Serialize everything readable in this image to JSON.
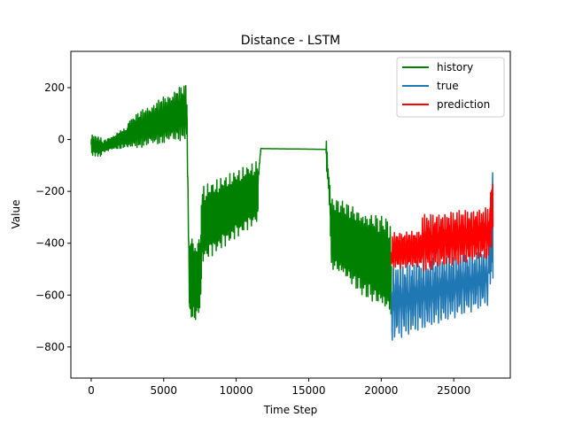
{
  "chart_data": {
    "type": "line",
    "title": "Distance - LSTM",
    "xlabel": "Time Step",
    "ylabel": "Value",
    "xlim": [
      -1400,
      28900
    ],
    "ylim": [
      -920,
      340
    ],
    "xticks": [
      0,
      5000,
      10000,
      15000,
      20000,
      25000
    ],
    "xtick_labels": [
      "0",
      "5000",
      "10000",
      "15000",
      "20000",
      "25000"
    ],
    "yticks": [
      -800,
      -600,
      -400,
      -200,
      0,
      200
    ],
    "ytick_labels": [
      "−800",
      "−600",
      "−400",
      "−200",
      "0",
      "200"
    ],
    "grid": false,
    "legend_position": "top-right",
    "series": [
      {
        "name": "history",
        "color": "#008000",
        "segments": [
          {
            "x_start": 0,
            "x_end": 700,
            "center": [
              -20,
              -30
            ],
            "amplitude": [
              40,
              40
            ],
            "period": 60
          },
          {
            "x_start": 700,
            "x_end": 2500,
            "center": [
              -30,
              10
            ],
            "amplitude": [
              20,
              40
            ],
            "period": 80
          },
          {
            "x_start": 2500,
            "x_end": 6600,
            "center": [
              20,
              110
            ],
            "amplitude": [
              60,
              110
            ],
            "period": 110
          },
          {
            "x_start": 6600,
            "x_end": 6800,
            "center": [
              80,
              -700
            ],
            "amplitude": [
              80,
              60
            ],
            "period": 60
          },
          {
            "x_start": 6800,
            "x_end": 7600,
            "center": [
              -550,
              -500
            ],
            "amplitude": [
              180,
              160
            ],
            "period": 70
          },
          {
            "x_start": 7600,
            "x_end": 11500,
            "center": [
              -330,
              -200
            ],
            "amplitude": [
              150,
              120
            ],
            "period": 90
          },
          {
            "x_start": 11500,
            "x_end": 11700,
            "center": [
              -160,
              -35
            ],
            "amplitude": [
              20,
              0
            ],
            "period": 60
          },
          {
            "x_start": 11700,
            "x_end": 16200,
            "center": [
              -35,
              -38
            ],
            "amplitude": [
              0,
              0
            ],
            "period": 500
          },
          {
            "x_start": 16200,
            "x_end": 16500,
            "center": [
              -40,
              -260
            ],
            "amplitude": [
              50,
              50
            ],
            "period": 60
          },
          {
            "x_start": 16500,
            "x_end": 20700,
            "center": [
              -360,
              -500
            ],
            "amplitude": [
              140,
              190
            ],
            "period": 100
          }
        ]
      },
      {
        "name": "true",
        "color": "#1f77b4",
        "segments": [
          {
            "x_start": 20700,
            "x_end": 27400,
            "center": [
              -630,
              -530
            ],
            "amplitude": [
              150,
              110
            ],
            "period": 160
          },
          {
            "x_start": 27400,
            "x_end": 27700,
            "center": [
              -470,
              -300
            ],
            "amplitude": [
              90,
              300
            ],
            "period": 60
          }
        ]
      },
      {
        "name": "prediction",
        "color": "#ff0000",
        "segments": [
          {
            "x_start": 20700,
            "x_end": 22800,
            "center": [
              -430,
              -420
            ],
            "amplitude": [
              70,
              70
            ],
            "period": 120
          },
          {
            "x_start": 22800,
            "x_end": 27400,
            "center": [
              -400,
              -360
            ],
            "amplitude": [
              110,
              100
            ],
            "period": 140
          },
          {
            "x_start": 27400,
            "x_end": 27700,
            "center": [
              -380,
              -250
            ],
            "amplitude": [
              90,
              160
            ],
            "period": 60
          }
        ]
      }
    ]
  }
}
